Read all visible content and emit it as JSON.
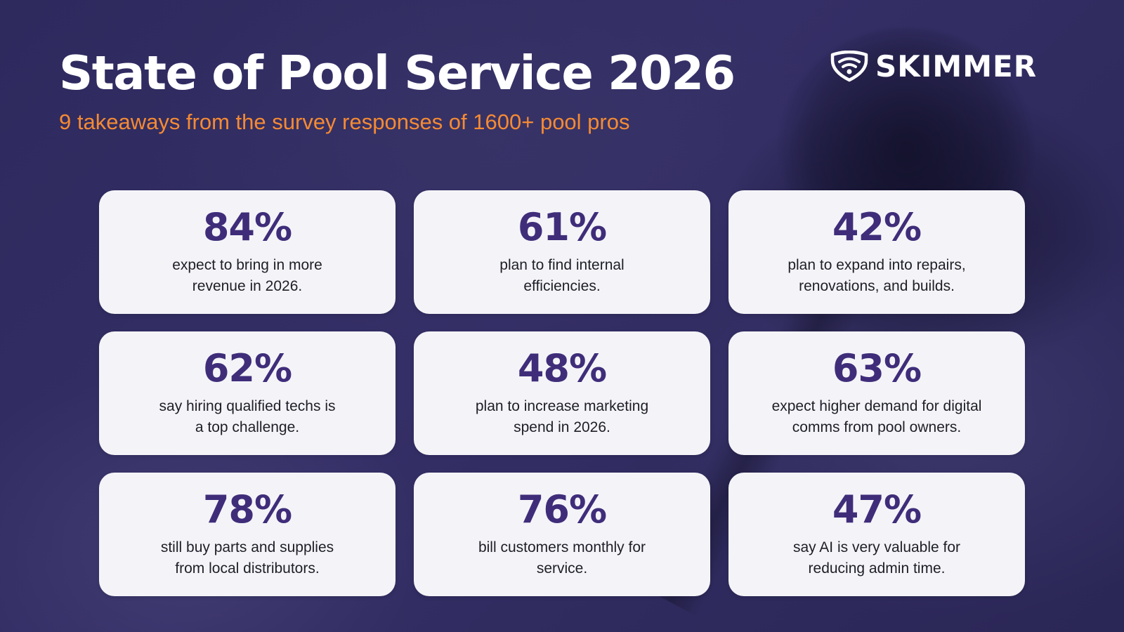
{
  "header": {
    "title": "State of Pool Service 2026",
    "subtitle": "9 takeaways from the survey responses of 1600+ pool pros"
  },
  "logo": {
    "icon": "wifi-shield-icon",
    "text": "SKIMMER"
  },
  "colors": {
    "background": "#2e2a5e",
    "accent": "#f58a33",
    "stat": "#3f2d7a",
    "card": "#f4f4f8"
  },
  "cards": [
    {
      "stat": "84%",
      "line1": "expect to bring in more",
      "line2": "revenue in 2026."
    },
    {
      "stat": "61%",
      "line1": "plan to find internal",
      "line2": "efficiencies."
    },
    {
      "stat": "42%",
      "line1": "plan to expand into repairs,",
      "line2": "renovations, and builds."
    },
    {
      "stat": "62%",
      "line1": "say hiring qualified techs is",
      "line2": "a top challenge."
    },
    {
      "stat": "48%",
      "line1": "plan to increase marketing",
      "line2": "spend in 2026."
    },
    {
      "stat": "63%",
      "line1": "expect higher demand for digital",
      "line2": "comms from pool owners."
    },
    {
      "stat": "78%",
      "line1": "still buy parts and supplies",
      "line2": "from local distributors."
    },
    {
      "stat": "76%",
      "line1": "bill customers monthly for",
      "line2": "service."
    },
    {
      "stat": "47%",
      "line1": "say AI is very valuable for",
      "line2": "reducing admin time."
    }
  ]
}
